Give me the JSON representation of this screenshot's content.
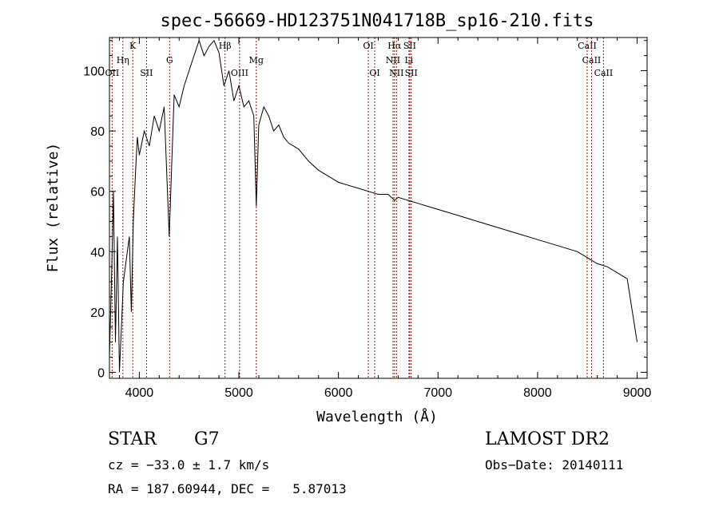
{
  "chart_data": {
    "type": "line",
    "title": "spec-56669-HD123751N041718B_sp16-210.fits",
    "xlabel": "Wavelength (Å)",
    "ylabel": "Flux (relative)",
    "xlim": [
      3700,
      9100
    ],
    "ylim": [
      -2,
      111
    ],
    "x_ticks": [
      4000,
      5000,
      6000,
      7000,
      8000,
      9000
    ],
    "y_ticks": [
      0,
      20,
      40,
      60,
      80,
      100
    ],
    "grid": false,
    "legend": "none",
    "line_color": "#000000",
    "marker_color": "#a01010",
    "series": [
      {
        "x": [
          3700,
          3720,
          3740,
          3760,
          3780,
          3800,
          3820,
          3840,
          3860,
          3880,
          3900,
          3920,
          3940,
          3960,
          3980,
          4000,
          4050,
          4100,
          4150,
          4200,
          4250,
          4300,
          4350,
          4400,
          4450,
          4500,
          4550,
          4600,
          4650,
          4700,
          4750,
          4800,
          4850,
          4900,
          4950,
          5000,
          5050,
          5100,
          5150,
          5175,
          5200,
          5250,
          5300,
          5350,
          5400,
          5450,
          5500,
          5600,
          5700,
          5800,
          5900,
          6000,
          6100,
          6200,
          6300,
          6400,
          6500,
          6563,
          6600,
          6700,
          6800,
          6900,
          7000,
          7200,
          7400,
          7600,
          7800,
          8000,
          8200,
          8400,
          8500,
          8600,
          8700,
          8800,
          8900,
          9000
        ],
        "y": [
          5,
          30,
          60,
          10,
          45,
          0,
          15,
          30,
          35,
          40,
          45,
          20,
          50,
          65,
          78,
          72,
          80,
          75,
          85,
          80,
          88,
          45,
          92,
          88,
          95,
          100,
          105,
          110,
          105,
          108,
          110,
          106,
          95,
          100,
          90,
          95,
          88,
          90,
          85,
          55,
          82,
          88,
          85,
          80,
          82,
          78,
          76,
          74,
          70,
          67,
          65,
          63,
          62,
          61,
          60,
          59,
          59,
          57,
          58,
          57,
          56,
          55,
          54,
          52,
          50,
          48,
          46,
          44,
          42,
          40,
          38,
          36,
          35,
          33,
          31,
          10
        ]
      }
    ],
    "lines": [
      {
        "label": "Hη",
        "x": 3835,
        "row": 2
      },
      {
        "label": "OII",
        "x": 3727,
        "row": 3
      },
      {
        "label": "K",
        "x": 3934,
        "row": 1
      },
      {
        "label": "SII",
        "x": 4072,
        "row": 3
      },
      {
        "label": "G",
        "x": 4304,
        "row": 2
      },
      {
        "label": "Hβ",
        "x": 4861,
        "row": 1
      },
      {
        "label": "OIII",
        "x": 5007,
        "row": 3
      },
      {
        "label": "Mg",
        "x": 5175,
        "row": 2
      },
      {
        "label": "OI",
        "x": 6300,
        "row": 1
      },
      {
        "label": "OI",
        "x": 6364,
        "row": 3
      },
      {
        "label": "Hα",
        "x": 6563,
        "row": 1
      },
      {
        "label": "NII",
        "x": 6548,
        "row": 2
      },
      {
        "label": "NII",
        "x": 6583,
        "row": 3
      },
      {
        "label": "SII",
        "x": 6716,
        "row": 1
      },
      {
        "label": "Li",
        "x": 6708,
        "row": 2
      },
      {
        "label": "SII",
        "x": 6731,
        "row": 3
      },
      {
        "label": "CaII",
        "x": 8498,
        "row": 1
      },
      {
        "label": "CaII",
        "x": 8542,
        "row": 2
      },
      {
        "label": "CaII",
        "x": 8662,
        "row": 3
      }
    ]
  },
  "info": {
    "object_class": "STAR",
    "subclass": "G7",
    "survey": "LAMOST DR2",
    "velocity": "cz = −33.0 ± 1.7 km/s",
    "obs_date": "Obs−Date: 20140111",
    "coordinates": "RA = 187.60944, DEC =   5.87013"
  }
}
